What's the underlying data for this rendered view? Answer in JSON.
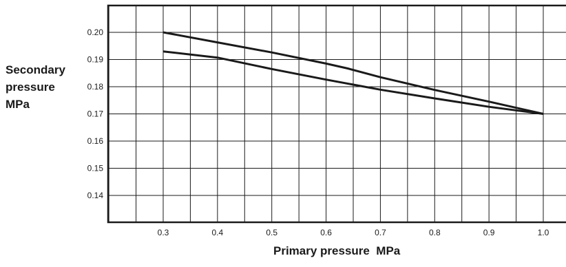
{
  "chart_data": {
    "type": "line",
    "title": "",
    "xlabel": "Primary pressure  MPa",
    "ylabel_lines": [
      "Secondary",
      "pressure",
      "MPa"
    ],
    "x_ticks": [
      "0.3",
      "0.4",
      "0.5",
      "0.6",
      "0.7",
      "0.8",
      "0.9",
      "1.0"
    ],
    "y_ticks": [
      "0.20",
      "0.19",
      "0.18",
      "0.17",
      "0.16",
      "0.15",
      "0.14"
    ],
    "xlim": [
      0.2,
      1.05
    ],
    "ylim": [
      0.13,
      0.21
    ],
    "grid": true,
    "line_color": "#1a1a1a",
    "series": [
      {
        "x": [
          0.3,
          0.4,
          0.5,
          0.6,
          0.64,
          0.7,
          0.8,
          0.9,
          1.0
        ],
        "y": [
          0.2,
          0.1963,
          0.1926,
          0.1885,
          0.1867,
          0.1835,
          0.1788,
          0.1745,
          0.17
        ]
      },
      {
        "x": [
          0.3,
          0.4,
          0.5,
          0.6,
          0.7,
          0.8,
          0.9,
          1.0
        ],
        "y": [
          0.193,
          0.1907,
          0.1865,
          0.1826,
          0.1789,
          0.1757,
          0.1726,
          0.17
        ]
      }
    ]
  }
}
